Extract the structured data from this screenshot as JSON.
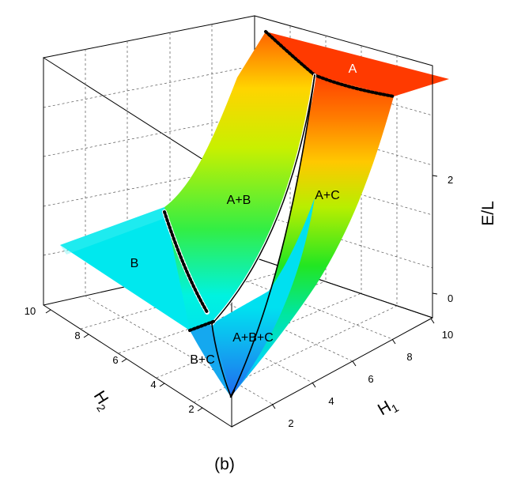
{
  "chart_data": {
    "type": "surface",
    "caption": "(b)",
    "axes": {
      "x": {
        "label": "H1",
        "label_main": "H",
        "label_sub": "1",
        "range": [
          0,
          10
        ],
        "ticks": [
          "2",
          "4",
          "6",
          "8",
          "10"
        ]
      },
      "y": {
        "label": "H2",
        "label_main": "H",
        "label_sub": "2",
        "range": [
          0,
          10
        ],
        "ticks": [
          "2",
          "4",
          "6",
          "8",
          "10"
        ]
      },
      "z": {
        "label": "E/L",
        "range": [
          -1,
          3.6
        ],
        "ticks": [
          "0",
          "2"
        ]
      }
    },
    "grid": true,
    "colormap": [
      "#1e6cf0",
      "#00e8ee",
      "#2ae62a",
      "#e6e600",
      "#ff8c00",
      "#ff2a00"
    ],
    "regions": [
      "A",
      "A+B",
      "A+C",
      "B",
      "A+B+C",
      "B+C"
    ],
    "boundaries": [
      "A / A+B",
      "A / A+C",
      "A+B / A+C",
      "B / A+B",
      "B+C / A+B+C",
      "A+B+C / A+C"
    ]
  }
}
